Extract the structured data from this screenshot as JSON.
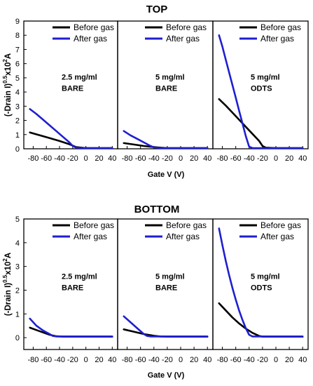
{
  "chart_data": [
    {
      "type": "line",
      "title": "TOP",
      "xlabel": "Gate V (V)",
      "ylabel": "(-Drain I)^0.5x10^2A",
      "ylabel_parts": {
        "base": "(-Drain I)",
        "exp1": "0.5",
        "mid": "x10",
        "exp2": "2",
        "end": "A"
      },
      "ylim": [
        0,
        9
      ],
      "yticks": [
        "0",
        "1",
        "2",
        "3",
        "4",
        "5",
        "6",
        "7",
        "8",
        "9"
      ],
      "xlim": [
        -90,
        45
      ],
      "xticks": [
        "-80",
        "-60",
        "-40",
        "-20",
        "0",
        "20",
        "40"
      ],
      "legend_position": "top-right",
      "series_colors": [
        "#000000",
        "#1f1fd1"
      ],
      "panels": [
        {
          "label_line1": "2.5 mg/ml",
          "label_line2": "BARE",
          "series": [
            {
              "name": "Before gas",
              "x": [
                -85,
                -70,
                -55,
                -40,
                -25,
                -20,
                -15,
                0,
                20,
                40
              ],
              "y": [
                1.15,
                0.95,
                0.75,
                0.55,
                0.32,
                0.22,
                0.12,
                0.05,
                0.05,
                0.05
              ]
            },
            {
              "name": "After gas",
              "x": [
                -85,
                -75,
                -65,
                -55,
                -45,
                -35,
                -25,
                -20,
                -15,
                0,
                20,
                40
              ],
              "y": [
                2.8,
                2.45,
                2.05,
                1.65,
                1.25,
                0.85,
                0.45,
                0.2,
                0.08,
                0.05,
                0.05,
                0.05
              ]
            }
          ]
        },
        {
          "label_line1": "5 mg/ml",
          "label_line2": "BARE",
          "series": [
            {
              "name": "Before gas",
              "x": [
                -85,
                -70,
                -55,
                -40,
                -30,
                -20,
                0,
                20,
                40
              ],
              "y": [
                0.4,
                0.3,
                0.2,
                0.12,
                0.08,
                0.05,
                0.05,
                0.05,
                0.05
              ]
            },
            {
              "name": "After gas",
              "x": [
                -85,
                -75,
                -65,
                -55,
                -45,
                -40,
                -30,
                0,
                20,
                40
              ],
              "y": [
                1.25,
                0.95,
                0.7,
                0.45,
                0.2,
                0.1,
                0.05,
                0.05,
                0.05,
                0.05
              ]
            }
          ]
        },
        {
          "label_line1": "5 mg/ml",
          "label_line2": "ODTS",
          "series": [
            {
              "name": "Before gas",
              "x": [
                -85,
                -75,
                -65,
                -55,
                -45,
                -35,
                -25,
                -20,
                -15,
                0,
                20,
                40
              ],
              "y": [
                3.5,
                3.05,
                2.55,
                2.05,
                1.55,
                1.05,
                0.55,
                0.2,
                0.08,
                0.05,
                0.05,
                0.05
              ]
            },
            {
              "name": "After gas",
              "x": [
                -85,
                -80,
                -75,
                -70,
                -65,
                -60,
                -55,
                -50,
                -45,
                -40,
                -35,
                0,
                20,
                40
              ],
              "y": [
                8.0,
                7.2,
                6.3,
                5.4,
                4.5,
                3.6,
                2.7,
                1.8,
                0.9,
                0.15,
                0.05,
                0.05,
                0.05,
                0.05
              ]
            }
          ]
        }
      ]
    },
    {
      "type": "line",
      "title": "BOTTOM",
      "xlabel": "Gate V (V)",
      "ylabel": "(-Drain I)^0.5x10^2A",
      "ylabel_parts": {
        "base": "(-Drain I)",
        "exp1": "0.5",
        "mid": "x10",
        "exp2": "2",
        "end": "A"
      },
      "ylim": [
        -0.5,
        5
      ],
      "yticks": [
        "0",
        "1",
        "2",
        "3",
        "4",
        "5"
      ],
      "xlim": [
        -90,
        45
      ],
      "xticks": [
        "-80",
        "-60",
        "-40",
        "-20",
        "0",
        "20",
        "40"
      ],
      "legend_position": "top-right",
      "series_colors": [
        "#000000",
        "#1f1fd1"
      ],
      "panels": [
        {
          "label_line1": "2.5 mg/ml",
          "label_line2": "BARE",
          "series": [
            {
              "name": "Before gas",
              "x": [
                -85,
                -75,
                -65,
                -55,
                -45,
                -35,
                -20,
                0,
                20,
                40
              ],
              "y": [
                0.42,
                0.32,
                0.22,
                0.12,
                0.06,
                0.04,
                0.04,
                0.04,
                0.04,
                0.04
              ]
            },
            {
              "name": "After gas",
              "x": [
                -85,
                -75,
                -65,
                -55,
                -50,
                -45,
                -35,
                0,
                20,
                40
              ],
              "y": [
                0.8,
                0.5,
                0.3,
                0.15,
                0.07,
                0.05,
                0.05,
                0.05,
                0.05,
                0.05
              ]
            }
          ]
        },
        {
          "label_line1": "5 mg/ml",
          "label_line2": "BARE",
          "series": [
            {
              "name": "Before gas",
              "x": [
                -85,
                -70,
                -55,
                -40,
                -30,
                -20,
                0,
                20,
                40
              ],
              "y": [
                0.35,
                0.25,
                0.15,
                0.08,
                0.05,
                0.04,
                0.04,
                0.04,
                0.04
              ]
            },
            {
              "name": "After gas",
              "x": [
                -85,
                -75,
                -65,
                -55,
                -50,
                -45,
                -35,
                0,
                20,
                40
              ],
              "y": [
                0.9,
                0.65,
                0.4,
                0.15,
                0.07,
                0.05,
                0.05,
                0.05,
                0.05,
                0.05
              ]
            }
          ]
        },
        {
          "label_line1": "5 mg/ml",
          "label_line2": "ODTS",
          "series": [
            {
              "name": "Before gas",
              "x": [
                -85,
                -75,
                -65,
                -55,
                -45,
                -35,
                -25,
                -20,
                0,
                20,
                40
              ],
              "y": [
                1.45,
                1.15,
                0.85,
                0.6,
                0.38,
                0.2,
                0.07,
                0.04,
                0.04,
                0.04,
                0.04
              ]
            },
            {
              "name": "After gas",
              "x": [
                -85,
                -80,
                -75,
                -70,
                -65,
                -60,
                -55,
                -50,
                -45,
                -40,
                -35,
                0,
                20,
                40
              ],
              "y": [
                4.6,
                3.9,
                3.25,
                2.65,
                2.1,
                1.6,
                1.15,
                0.75,
                0.4,
                0.12,
                0.05,
                0.05,
                0.05,
                0.05
              ]
            }
          ]
        }
      ]
    }
  ]
}
